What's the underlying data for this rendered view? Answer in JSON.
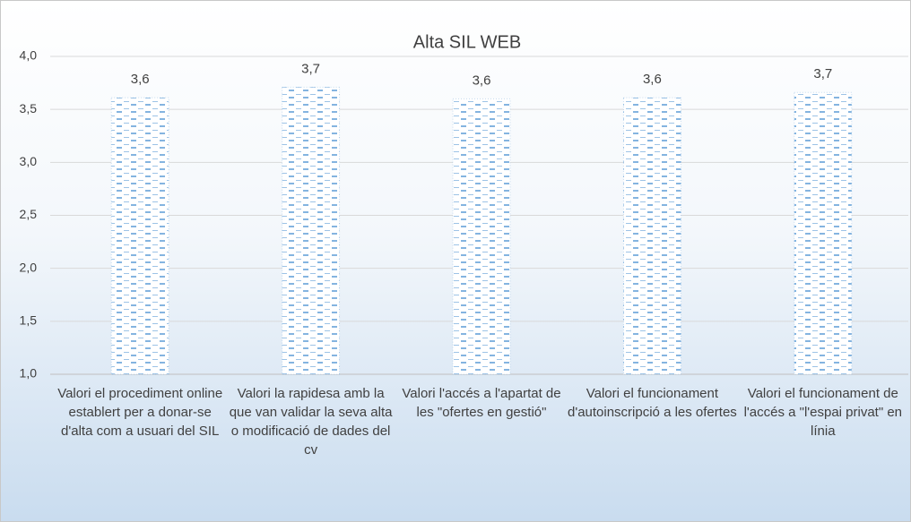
{
  "chart_data": {
    "type": "bar",
    "title": "Alta SIL WEB",
    "categories": [
      "Valori el procediment online establert per a donar-se d'alta com a usuari del SIL",
      "Valori la rapidesa amb la que van validar la seva alta o modificació de dades del cv",
      "Valori l'accés a l'apartat de les \"ofertes en gestió\"",
      "Valori el funcionament d'autoinscripció a les ofertes",
      "Valori el funcionament de l'accés a \"l'espai privat\" en línia"
    ],
    "values": [
      3.61,
      3.71,
      3.6,
      3.61,
      3.66
    ],
    "value_labels": [
      "3,6",
      "3,7",
      "3,6",
      "3,6",
      "3,7"
    ],
    "color": "#5b9bd5",
    "ylim": [
      1,
      4
    ],
    "yticks": [
      {
        "value": 1,
        "label": "1,0"
      },
      {
        "value": 1.5,
        "label": "1,5"
      },
      {
        "value": 2,
        "label": "2,0"
      },
      {
        "value": 2.5,
        "label": "2,5"
      },
      {
        "value": 3,
        "label": "3,0"
      },
      {
        "value": 3.5,
        "label": "3,5"
      },
      {
        "value": 4,
        "label": "4,0"
      }
    ],
    "grid": true
  }
}
